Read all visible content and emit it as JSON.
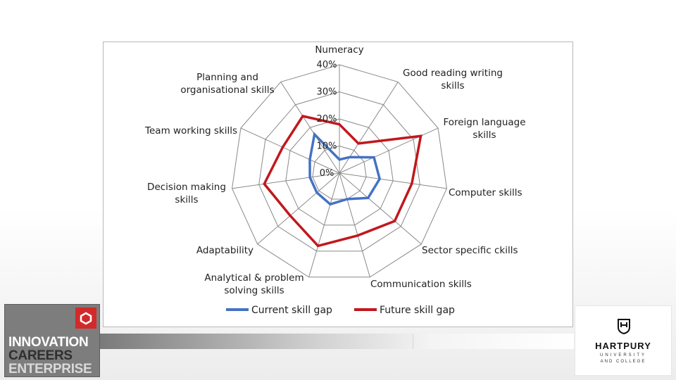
{
  "chart_data": {
    "type": "radar",
    "categories": [
      "Numeracy",
      "Good reading writing skills",
      "Foreign language skills",
      "Computer skills",
      "Sector specific ckills",
      "Communication skills",
      "Analytical & problem solving skills",
      "Adaptability",
      "Decision making skills",
      "Team working skills",
      "Planning and organisational skills"
    ],
    "category_lines": [
      [
        "Numeracy"
      ],
      [
        "Good reading writing",
        "skills"
      ],
      [
        "Foreign language",
        "skills"
      ],
      [
        "Computer skills"
      ],
      [
        "Sector specific ckills"
      ],
      [
        "Communication skills"
      ],
      [
        "Analytical & problem",
        "solving skills"
      ],
      [
        "Adaptability"
      ],
      [
        "Decision making",
        "skills"
      ],
      [
        "Team working skills"
      ],
      [
        "Planning and",
        "organisational skills"
      ]
    ],
    "series": [
      {
        "name": "Current skill gap",
        "color": "#4472c4",
        "values": [
          5,
          7,
          14,
          15,
          14,
          10,
          12,
          11,
          11,
          12,
          17
        ]
      },
      {
        "name": "Future skill gap",
        "color": "#c0181d",
        "values": [
          18,
          13,
          33,
          27,
          27,
          24,
          28,
          24,
          28,
          23,
          25
        ]
      }
    ],
    "ticks": [
      0,
      10,
      20,
      30,
      40
    ],
    "tick_labels": [
      "0%",
      "10%",
      "20%",
      "30%",
      "40%"
    ],
    "rmax": 40,
    "grid": true,
    "legend_position": "bottom"
  },
  "logos": {
    "ice": {
      "lines": [
        "INNOVATION",
        "CAREERS",
        "ENTERPRISE"
      ]
    },
    "hartpury": {
      "name": "HARTPURY",
      "sub1": "UNIVERSITY",
      "sub2": "AND COLLEGE"
    }
  }
}
